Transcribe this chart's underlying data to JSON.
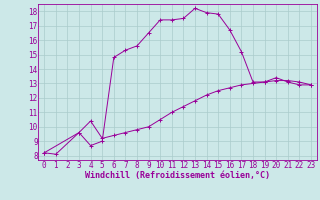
{
  "xlabel": "Windchill (Refroidissement éolien,°C)",
  "bg_color": "#cce8e8",
  "line_color": "#990099",
  "grid_color": "#aacccc",
  "xlim": [
    -0.5,
    23.5
  ],
  "ylim": [
    7.7,
    18.5
  ],
  "yticks": [
    8,
    9,
    10,
    11,
    12,
    13,
    14,
    15,
    16,
    17,
    18
  ],
  "xticks": [
    0,
    1,
    2,
    3,
    4,
    5,
    6,
    7,
    8,
    9,
    10,
    11,
    12,
    13,
    14,
    15,
    16,
    17,
    18,
    19,
    20,
    21,
    22,
    23
  ],
  "line1_x": [
    0,
    1,
    3,
    4,
    5,
    6,
    7,
    8,
    9,
    10,
    11,
    12,
    13,
    14,
    15,
    16,
    17,
    18,
    19,
    20,
    21,
    22,
    23
  ],
  "line1_y": [
    8.2,
    8.1,
    9.6,
    8.7,
    9.0,
    14.8,
    15.3,
    15.6,
    16.5,
    17.4,
    17.4,
    17.5,
    18.2,
    17.9,
    17.8,
    16.7,
    15.2,
    13.1,
    13.1,
    13.4,
    13.1,
    12.9,
    12.9
  ],
  "line2_x": [
    0,
    3,
    4,
    5,
    6,
    7,
    8,
    9,
    10,
    11,
    12,
    13,
    14,
    15,
    16,
    17,
    18,
    19,
    20,
    21,
    22,
    23
  ],
  "line2_y": [
    8.2,
    9.6,
    10.4,
    9.2,
    9.4,
    9.6,
    9.8,
    10.0,
    10.5,
    11.0,
    11.4,
    11.8,
    12.2,
    12.5,
    12.7,
    12.9,
    13.0,
    13.1,
    13.2,
    13.2,
    13.1,
    12.9
  ],
  "xlabel_fontsize": 6,
  "tick_fontsize": 5.5
}
